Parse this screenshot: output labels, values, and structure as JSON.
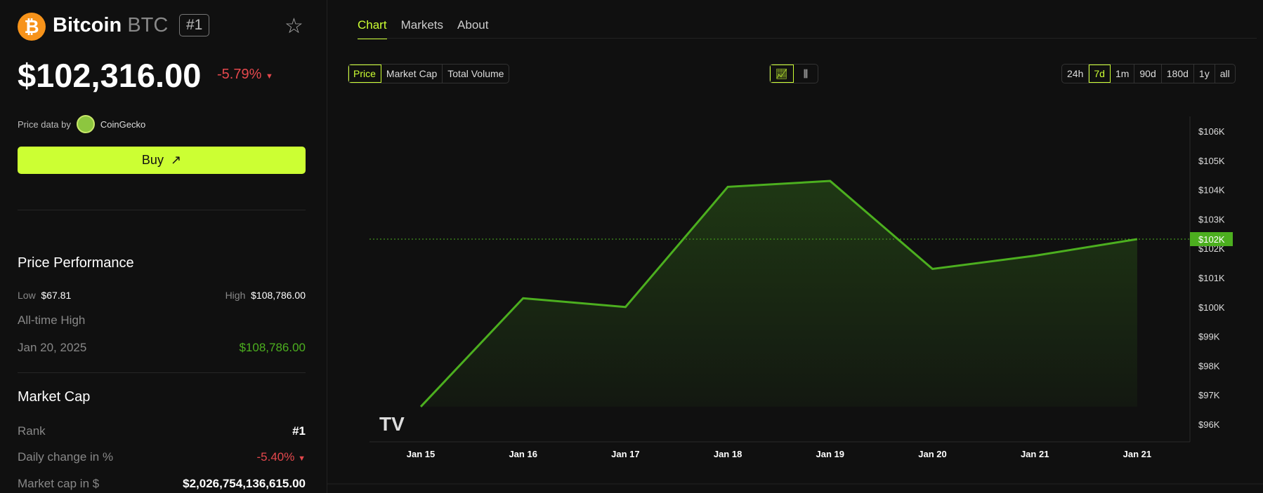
{
  "coin": {
    "name": "Bitcoin",
    "symbol": "BTC",
    "rank_badge": "#1",
    "price": "$102,316.00",
    "change": "-5.79%",
    "price_source_label": "Price data by",
    "price_source": "CoinGecko",
    "buy_label": "Buy"
  },
  "performance": {
    "title": "Price Performance",
    "low_label": "Low",
    "low": "$67.81",
    "high_label": "High",
    "high": "$108,786.00",
    "ath_label": "All-time High",
    "ath_date": "Jan 20, 2025",
    "ath_value": "$108,786.00"
  },
  "market_cap": {
    "title": "Market Cap",
    "rank_label": "Rank",
    "rank": "#1",
    "daily_label": "Daily change in %",
    "daily": "-5.40%",
    "cap_label": "Market cap in $",
    "cap": "$2,026,754,136,615.00"
  },
  "tabs": [
    "Chart",
    "Markets",
    "About"
  ],
  "metric_buttons": [
    "Price",
    "Market Cap",
    "Total Volume"
  ],
  "range_buttons": [
    "24h",
    "7d",
    "1m",
    "90d",
    "180d",
    "1y",
    "all"
  ],
  "active_range": "7d",
  "colors": {
    "accent": "#ccff33",
    "up": "#4caf1f",
    "down": "#e5484d"
  },
  "chart_data": {
    "type": "area",
    "x": [
      "Jan 15",
      "Jan 16",
      "Jan 17",
      "Jan 18",
      "Jan 19",
      "Jan 20",
      "Jan 21",
      "Jan 21"
    ],
    "values": [
      96.6,
      100.3,
      100.0,
      104.1,
      104.3,
      101.3,
      101.75,
      102.316
    ],
    "unit": "$K",
    "yticks": [
      "$96K",
      "$97K",
      "$98K",
      "$99K",
      "$100K",
      "$101K",
      "$102K",
      "$103K",
      "$104K",
      "$105K",
      "$106K"
    ],
    "ylim": [
      96,
      106
    ],
    "current_label": "$102K",
    "current_value": 102.316,
    "grid": false
  }
}
